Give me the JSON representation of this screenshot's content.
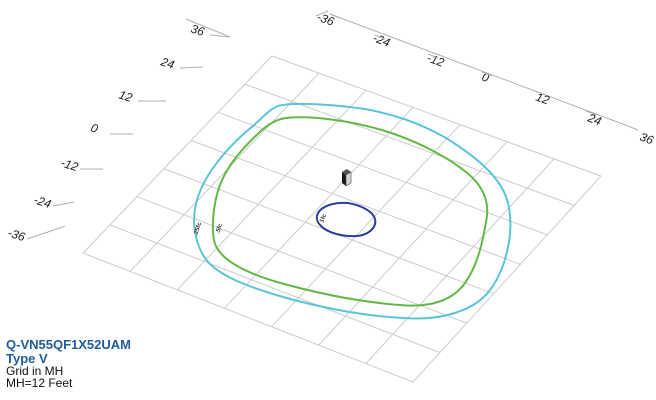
{
  "product": {
    "model": "Q-VN55QF1X52UAM",
    "type": "Type V",
    "grid_note": "Grid in MH",
    "mounting_height": "MH=12 Feet"
  },
  "axis_left": {
    "ticks": [
      "36",
      "24",
      "12",
      "0",
      "-12",
      "-24",
      "-36"
    ]
  },
  "axis_right": {
    "ticks": [
      "-36",
      "-24",
      "-12",
      "0",
      "12",
      "24",
      "36"
    ]
  },
  "contours": [
    {
      "label": "1fc",
      "color": "#2b3f9e"
    },
    {
      "label": ".5fc",
      "color": "#62b846"
    },
    {
      "label": ".25fc",
      "color": "#5cc4d8"
    }
  ],
  "colors": {
    "grid": "#cccccc",
    "axis_lines": "#b0b0b0",
    "title": "#1f5c99"
  },
  "icons": {
    "fixture": "fixture-icon"
  }
}
